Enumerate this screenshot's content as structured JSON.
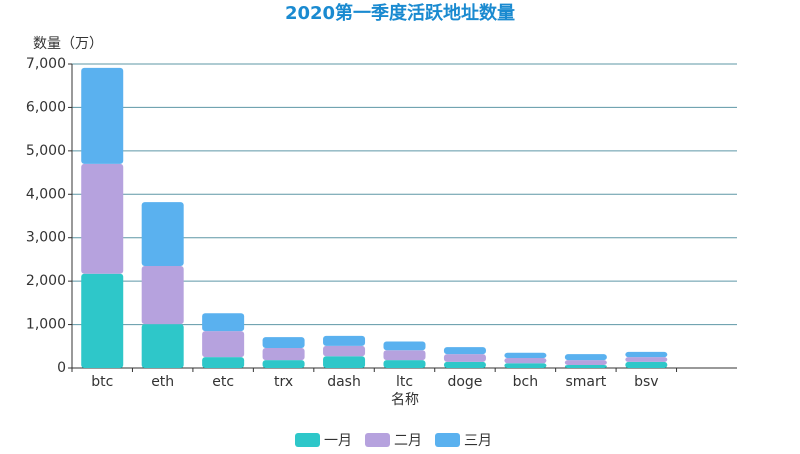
{
  "chart_data": {
    "type": "stacked_bar",
    "title": "2020第一季度活跃地址数量",
    "y_label": "数量（万）",
    "x_label": "名称",
    "categories": [
      "btc",
      "eth",
      "etc",
      "trx",
      "dash",
      "ltc",
      "doge",
      "bch",
      "smart",
      "bsv",
      null
    ],
    "series": [
      {
        "name": "一月",
        "color": "#2ec7c9",
        "values": [
          2170,
          1010,
          250,
          180,
          270,
          180,
          140,
          110,
          70,
          140,
          null
        ]
      },
      {
        "name": "二月",
        "color": "#b6a2de",
        "values": [
          2530,
          1340,
          600,
          280,
          240,
          230,
          180,
          120,
          110,
          110,
          null
        ]
      },
      {
        "name": "三月",
        "color": "#5ab1ef",
        "values": [
          2210,
          1470,
          410,
          250,
          230,
          200,
          160,
          120,
          140,
          120,
          null
        ]
      }
    ],
    "ylim": [
      0,
      7000
    ],
    "yticks": [
      0,
      {
        "value": 1000,
        "label": "1,000"
      },
      {
        "value": 2000,
        "label": "2,000"
      },
      {
        "value": 3000,
        "label": "3,000"
      },
      {
        "value": 4000,
        "label": "4,000"
      },
      {
        "value": 5000,
        "label": "5,000"
      },
      {
        "value": 6000,
        "label": "6,000"
      },
      {
        "value": 7000,
        "label": "7,000"
      }
    ],
    "grid": true,
    "legend": "bottom"
  }
}
